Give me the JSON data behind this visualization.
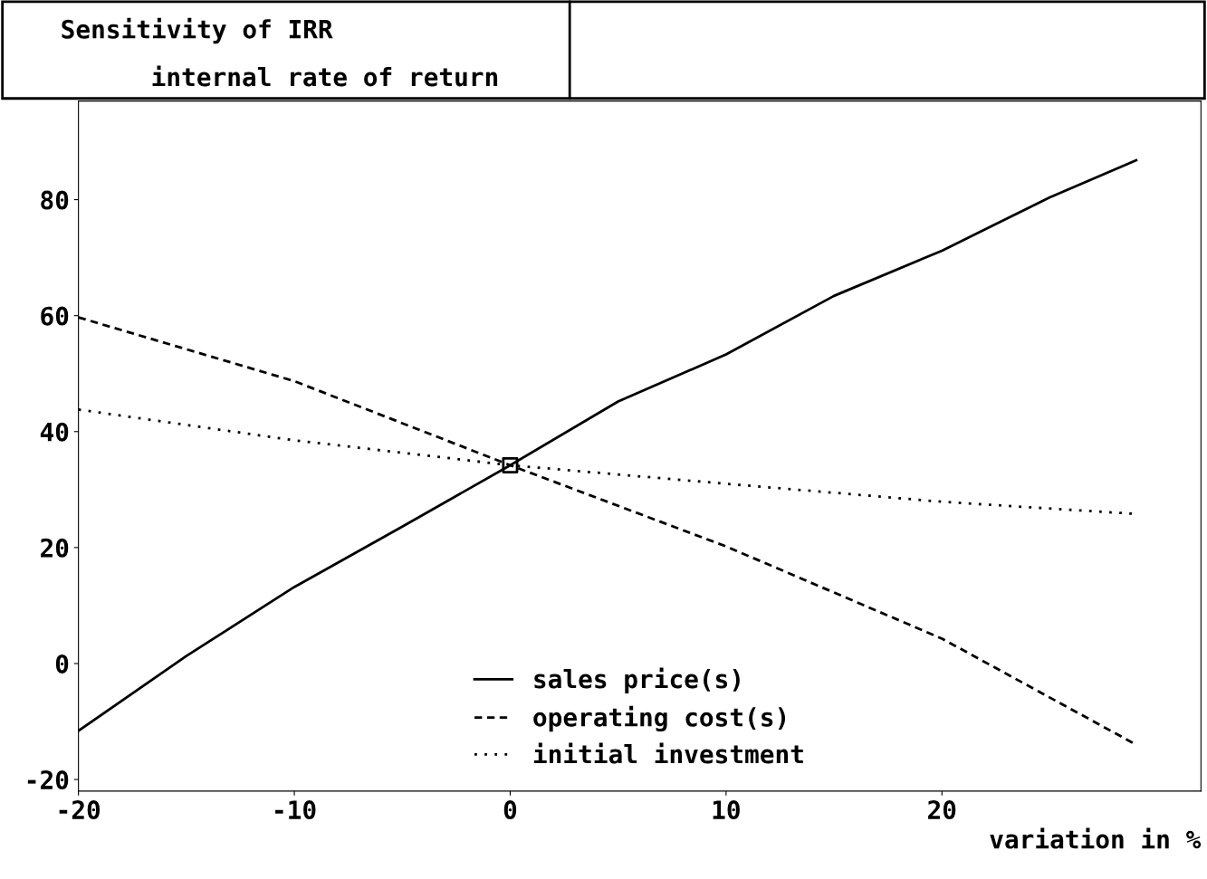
{
  "chart_data": {
    "type": "line",
    "title": "Sensitivity of IRR",
    "subtitle": "internal rate of return",
    "xlabel": "variation in %",
    "xlim": [
      -20,
      32
    ],
    "ylim": [
      -22,
      97
    ],
    "xticks": [
      -20,
      -10,
      0,
      10,
      20
    ],
    "yticks": [
      -20,
      0,
      20,
      40,
      60,
      80
    ],
    "grid": false,
    "legend": "lower center",
    "series": [
      {
        "name": "sales price(s)",
        "color": "#000000",
        "line_style": "solid",
        "x": [
          -20,
          -15,
          -10,
          -5,
          0,
          5,
          10,
          15,
          20,
          25,
          29
        ],
        "values": [
          -11.6,
          1.3,
          13.2,
          23.6,
          34.2,
          45.2,
          53.3,
          63.4,
          71.2,
          80.4,
          86.8
        ]
      },
      {
        "name": "operating cost(s)",
        "color": "#000000",
        "line_style": "dashed",
        "x": [
          -20,
          -10,
          0,
          10,
          20,
          29
        ],
        "values": [
          59.7,
          48.7,
          34.2,
          20.2,
          4.3,
          -14
        ]
      },
      {
        "name": "initial investment",
        "color": "#000000",
        "line_style": "dotted",
        "x": [
          -20,
          -10,
          0,
          10,
          20,
          29
        ],
        "values": [
          43.8,
          38.5,
          34.2,
          31,
          27.9,
          25.8
        ]
      },
      {
        "type": "scatter",
        "marker": "square",
        "color": "#000000",
        "x": [
          0
        ],
        "values": [
          34.2
        ]
      }
    ]
  }
}
